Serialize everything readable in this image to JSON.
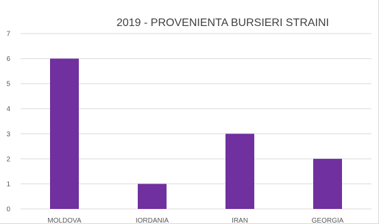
{
  "chart_data": {
    "type": "bar",
    "title": "2019 - PROVENIENTA BURSIERI STRAINI",
    "categories": [
      "MOLDOVA",
      "IORDANIA",
      "IRAN",
      "GEORGIA"
    ],
    "values": [
      6,
      1,
      3,
      2
    ],
    "ylim": [
      0,
      7
    ],
    "yticks": [
      0,
      1,
      2,
      3,
      4,
      5,
      6,
      7
    ],
    "grid": true,
    "bar_color": "#7030A0",
    "grid_color": "#d9d9d9",
    "text_color": "#595959"
  }
}
